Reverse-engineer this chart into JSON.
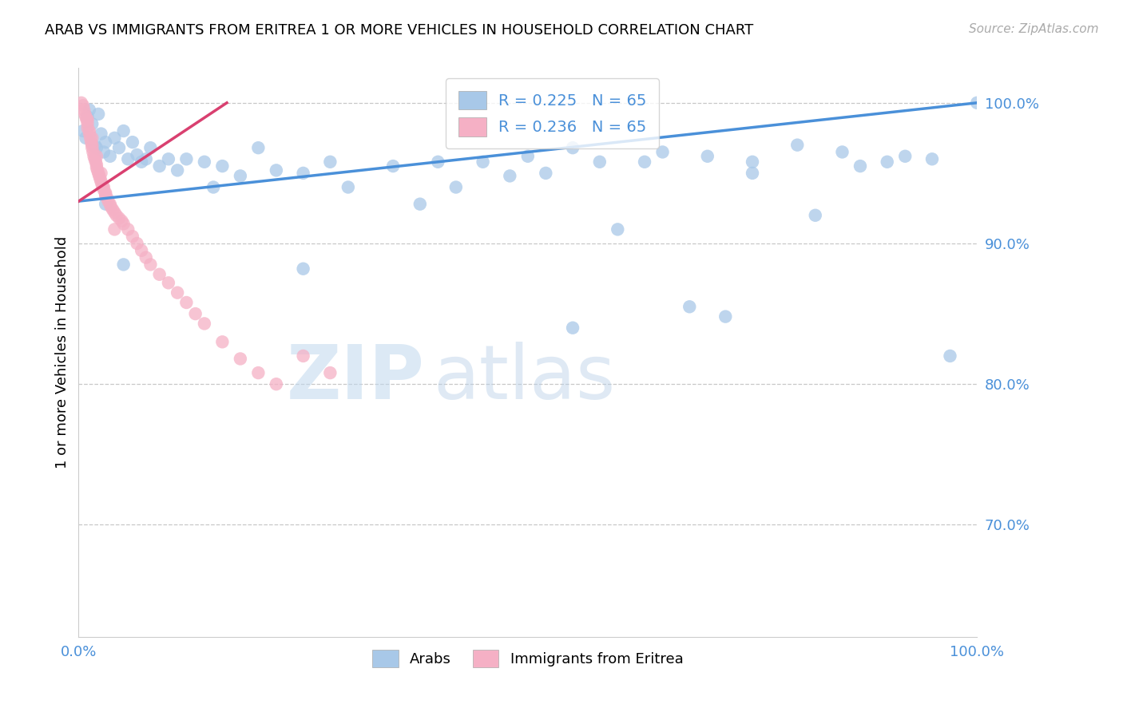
{
  "title": "ARAB VS IMMIGRANTS FROM ERITREA 1 OR MORE VEHICLES IN HOUSEHOLD CORRELATION CHART",
  "source": "Source: ZipAtlas.com",
  "ylabel": "1 or more Vehicles in Household",
  "xlim": [
    0.0,
    1.0
  ],
  "ylim": [
    0.62,
    1.025
  ],
  "yticks": [
    0.7,
    0.8,
    0.9,
    1.0
  ],
  "ytick_labels": [
    "70.0%",
    "80.0%",
    "90.0%",
    "100.0%"
  ],
  "xtick_labels": [
    "0.0%",
    "",
    "",
    "",
    "",
    "100.0%"
  ],
  "arab_scatter_color": "#a8c8e8",
  "eritrea_scatter_color": "#f5b0c5",
  "arab_line_color": "#4a90d9",
  "eritrea_line_color": "#d94070",
  "legend_r_arab": "R = 0.225",
  "legend_n_arab": "N = 65",
  "legend_r_eritrea": "R = 0.236",
  "legend_n_eritrea": "N = 65",
  "legend_label_arab": "Arabs",
  "legend_label_eritrea": "Immigrants from Eritrea",
  "watermark_part1": "ZIP",
  "watermark_part2": "atlas",
  "arab_x": [
    0.005,
    0.008,
    0.01,
    0.012,
    0.015,
    0.018,
    0.02,
    0.022,
    0.025,
    0.028,
    0.03,
    0.035,
    0.04,
    0.045,
    0.05,
    0.055,
    0.06,
    0.065,
    0.07,
    0.08,
    0.09,
    0.1,
    0.11,
    0.12,
    0.14,
    0.16,
    0.18,
    0.2,
    0.22,
    0.25,
    0.28,
    0.3,
    0.35,
    0.38,
    0.4,
    0.42,
    0.45,
    0.48,
    0.5,
    0.52,
    0.55,
    0.58,
    0.6,
    0.63,
    0.65,
    0.68,
    0.7,
    0.72,
    0.75,
    0.8,
    0.82,
    0.85,
    0.87,
    0.9,
    0.92,
    0.95,
    0.97,
    1.0,
    0.03,
    0.05,
    0.075,
    0.15,
    0.25,
    0.55,
    0.75
  ],
  "arab_y": [
    0.98,
    0.975,
    0.99,
    0.995,
    0.985,
    0.97,
    0.968,
    0.992,
    0.978,
    0.965,
    0.972,
    0.962,
    0.975,
    0.968,
    0.98,
    0.96,
    0.972,
    0.963,
    0.958,
    0.968,
    0.955,
    0.96,
    0.952,
    0.96,
    0.958,
    0.955,
    0.948,
    0.968,
    0.952,
    0.95,
    0.958,
    0.94,
    0.955,
    0.928,
    0.958,
    0.94,
    0.958,
    0.948,
    0.962,
    0.95,
    0.968,
    0.958,
    0.91,
    0.958,
    0.965,
    0.855,
    0.962,
    0.848,
    0.95,
    0.97,
    0.92,
    0.965,
    0.955,
    0.958,
    0.962,
    0.96,
    0.82,
    1.0,
    0.928,
    0.885,
    0.96,
    0.94,
    0.882,
    0.84,
    0.958
  ],
  "eritrea_x": [
    0.003,
    0.005,
    0.006,
    0.007,
    0.008,
    0.009,
    0.01,
    0.01,
    0.012,
    0.012,
    0.013,
    0.014,
    0.015,
    0.015,
    0.016,
    0.017,
    0.018,
    0.019,
    0.02,
    0.02,
    0.021,
    0.022,
    0.023,
    0.024,
    0.025,
    0.026,
    0.027,
    0.028,
    0.03,
    0.03,
    0.032,
    0.033,
    0.035,
    0.036,
    0.038,
    0.04,
    0.042,
    0.045,
    0.048,
    0.05,
    0.055,
    0.06,
    0.065,
    0.07,
    0.075,
    0.08,
    0.09,
    0.1,
    0.11,
    0.12,
    0.13,
    0.14,
    0.16,
    0.18,
    0.2,
    0.22,
    0.25,
    0.28,
    0.01,
    0.015,
    0.02,
    0.025,
    0.028,
    0.03,
    0.04
  ],
  "eritrea_y": [
    1.0,
    0.998,
    0.995,
    0.992,
    0.99,
    0.988,
    0.985,
    0.982,
    0.98,
    0.978,
    0.975,
    0.972,
    0.97,
    0.968,
    0.965,
    0.962,
    0.96,
    0.958,
    0.956,
    0.954,
    0.952,
    0.95,
    0.948,
    0.946,
    0.944,
    0.942,
    0.94,
    0.938,
    0.936,
    0.934,
    0.932,
    0.93,
    0.928,
    0.926,
    0.924,
    0.922,
    0.92,
    0.918,
    0.916,
    0.914,
    0.91,
    0.905,
    0.9,
    0.895,
    0.89,
    0.885,
    0.878,
    0.872,
    0.865,
    0.858,
    0.85,
    0.843,
    0.83,
    0.818,
    0.808,
    0.8,
    0.82,
    0.808,
    0.988,
    0.975,
    0.962,
    0.95,
    0.94,
    0.935,
    0.91
  ]
}
